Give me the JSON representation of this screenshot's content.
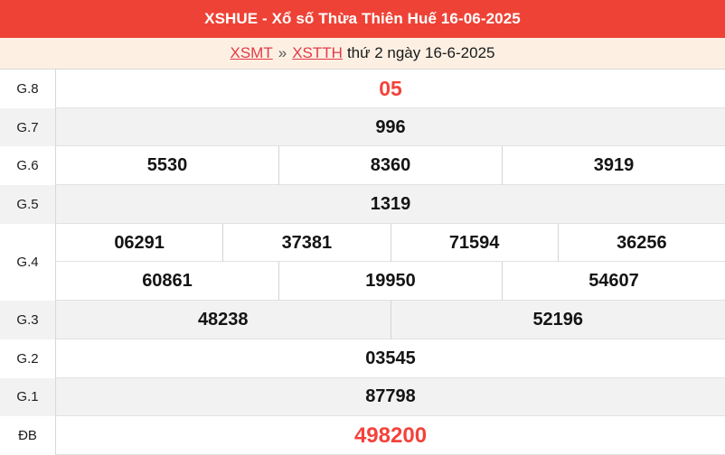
{
  "header": {
    "title": "XSHUE - Xổ số Thừa Thiên Huế 16-06-2025"
  },
  "breadcrumb": {
    "links": [
      {
        "label": "XSMT"
      },
      {
        "label": "XSTTH"
      }
    ],
    "separator": "»",
    "date_text": "thứ 2 ngày 16-6-2025"
  },
  "colors": {
    "header_bg": "#ee4236",
    "breadcrumb_bg": "#fdf0e3",
    "link_red": "#e23a48",
    "value_red": "#f3423b",
    "zebra_gray": "#f2f2f2"
  },
  "table": {
    "rows": [
      {
        "label": "G.8",
        "lines": [
          [
            "05"
          ]
        ],
        "highlight": true,
        "size": "g8"
      },
      {
        "label": "G.7",
        "lines": [
          [
            "996"
          ]
        ]
      },
      {
        "label": "G.6",
        "lines": [
          [
            "5530",
            "8360",
            "3919"
          ]
        ]
      },
      {
        "label": "G.5",
        "lines": [
          [
            "1319"
          ]
        ]
      },
      {
        "label": "G.4",
        "lines": [
          [
            "06291",
            "37381",
            "71594",
            "36256"
          ],
          [
            "60861",
            "19950",
            "54607"
          ]
        ]
      },
      {
        "label": "G.3",
        "lines": [
          [
            "48238",
            "52196"
          ]
        ]
      },
      {
        "label": "G.2",
        "lines": [
          [
            "03545"
          ]
        ]
      },
      {
        "label": "G.1",
        "lines": [
          [
            "87798"
          ]
        ]
      },
      {
        "label": "ĐB",
        "lines": [
          [
            "498200"
          ]
        ],
        "highlight": true,
        "size": "big"
      }
    ]
  }
}
